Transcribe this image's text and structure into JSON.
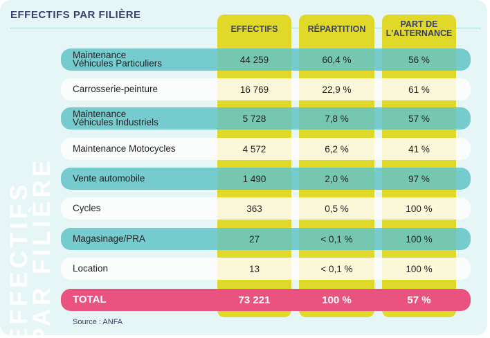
{
  "header": {
    "title": "EFFECTIFS PAR FILIÈRE"
  },
  "side_title": {
    "line1": "EFFECTIFS",
    "line2": "PAR FILIÈRE"
  },
  "columns": [
    {
      "line1": "EFFECTIFS",
      "line2": ""
    },
    {
      "line1": "RÉPARTITION",
      "line2": ""
    },
    {
      "line1": "PART DE",
      "line2": "L'ALTERNANCE"
    }
  ],
  "rows": [
    {
      "label1": "Maintenance",
      "label2": "Véhicules Particuliers",
      "effectifs": "44 259",
      "repartition": "60,4 %",
      "alternance": "56 %",
      "style": "teal"
    },
    {
      "label1": "Carrosserie-peinture",
      "label2": "",
      "effectifs": "16 769",
      "repartition": "22,9 %",
      "alternance": "61 %",
      "style": "white"
    },
    {
      "label1": "Maintenance",
      "label2": "Véhicules Industriels",
      "effectifs": "5 728",
      "repartition": "7,8 %",
      "alternance": "57 %",
      "style": "teal"
    },
    {
      "label1": "Maintenance Motocycles",
      "label2": "",
      "effectifs": "4 572",
      "repartition": "6,2 %",
      "alternance": "41 %",
      "style": "white"
    },
    {
      "label1": "Vente automobile",
      "label2": "",
      "effectifs": "1 490",
      "repartition": "2,0 %",
      "alternance": "97 %",
      "style": "teal"
    },
    {
      "label1": "Cycles",
      "label2": "",
      "effectifs": "363",
      "repartition": "0,5 %",
      "alternance": "100 %",
      "style": "white"
    },
    {
      "label1": "Magasinage/PRA",
      "label2": "",
      "effectifs": "27",
      "repartition": "< 0,1 %",
      "alternance": "100 %",
      "style": "teal"
    },
    {
      "label1": "Location",
      "label2": "",
      "effectifs": "13",
      "repartition": "< 0,1 %",
      "alternance": "100 %",
      "style": "white"
    }
  ],
  "total": {
    "label": "TOTAL",
    "effectifs": "73 221",
    "repartition": "100 %",
    "alternance": "57 %"
  },
  "source": "Source : ANFA",
  "colors": {
    "teal": "#62c3c7",
    "white": "#ffffff",
    "yellow": "#e1d92a",
    "pink": "#ea5280",
    "navy": "#3a3f6b",
    "background": "#e6f5f5"
  },
  "chart_data": {
    "type": "table",
    "title": "EFFECTIFS PAR FILIÈRE",
    "columns": [
      "EFFECTIFS",
      "RÉPARTITION",
      "PART DE L'ALTERNANCE"
    ],
    "rows": [
      [
        "Maintenance Véhicules Particuliers",
        "44 259",
        "60,4 %",
        "56 %"
      ],
      [
        "Carrosserie-peinture",
        "16 769",
        "22,9 %",
        "61 %"
      ],
      [
        "Maintenance Véhicules Industriels",
        "5 728",
        "7,8 %",
        "57 %"
      ],
      [
        "Maintenance Motocycles",
        "4 572",
        "6,2 %",
        "41 %"
      ],
      [
        "Vente automobile",
        "1 490",
        "2,0 %",
        "97 %"
      ],
      [
        "Cycles",
        "363",
        "0,5 %",
        "100 %"
      ],
      [
        "Magasinage/PRA",
        "27",
        "< 0,1 %",
        "100 %"
      ],
      [
        "Location",
        "13",
        "< 0,1 %",
        "100 %"
      ],
      [
        "TOTAL",
        "73 221",
        "100 %",
        "57 %"
      ]
    ]
  }
}
